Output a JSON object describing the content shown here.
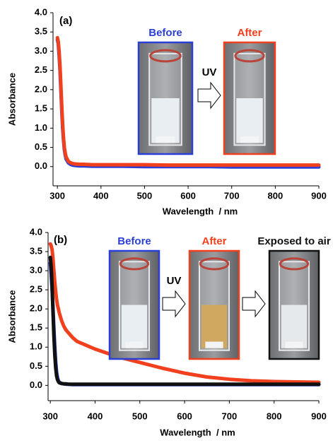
{
  "chart_data": [
    {
      "type": "line",
      "panel_label": "(a)",
      "x_label": "Wavelength  / nm",
      "y_label": "Absorbance",
      "annotations": [
        "UV"
      ],
      "x": [
        300,
        302,
        304,
        306,
        308,
        310,
        312,
        314,
        316,
        318,
        320,
        325,
        330,
        335,
        340,
        350,
        360,
        380,
        400,
        450,
        500,
        550,
        600,
        650,
        700,
        750,
        800,
        850,
        900
      ],
      "xlim": [
        290,
        900
      ],
      "xticks": [
        300,
        400,
        500,
        600,
        700,
        800,
        900
      ],
      "ylim": [
        -0.5,
        4.0
      ],
      "yticks": [
        {
          "value": 0,
          "label": "0.0"
        },
        0.5,
        {
          "value": 1,
          "label": "1.0"
        },
        1.5,
        {
          "value": 2,
          "label": "2.0"
        },
        2.5,
        {
          "value": 3,
          "label": "3.0"
        },
        3.5,
        {
          "value": 4,
          "label": "4.0"
        }
      ],
      "grid": false,
      "series": [
        {
          "name": "Before",
          "color": "#2b3fd6",
          "values": [
            3.3,
            3.2,
            2.9,
            2.5,
            2.0,
            1.5,
            1.0,
            0.7,
            0.45,
            0.3,
            0.2,
            0.1,
            0.06,
            0.04,
            0.03,
            0.02,
            0.02,
            0.01,
            0.01,
            0.01,
            0.0,
            0.0,
            0.0,
            0.0,
            -0.01,
            -0.01,
            -0.01,
            -0.01,
            -0.01
          ]
        },
        {
          "name": "After",
          "color": "#f0401e",
          "values": [
            3.35,
            3.25,
            3.0,
            2.6,
            2.1,
            1.6,
            1.1,
            0.75,
            0.5,
            0.35,
            0.25,
            0.14,
            0.1,
            0.08,
            0.07,
            0.06,
            0.06,
            0.05,
            0.05,
            0.05,
            0.05,
            0.04,
            0.04,
            0.04,
            0.04,
            0.04,
            0.04,
            0.04,
            0.04
          ]
        }
      ]
    },
    {
      "type": "line",
      "panel_label": "(b)",
      "x_label": "Wavelength  / nm",
      "y_label": "Absorbance",
      "annotations": [
        "UV"
      ],
      "x": [
        300,
        302,
        304,
        306,
        308,
        310,
        312,
        314,
        316,
        318,
        320,
        325,
        330,
        335,
        340,
        350,
        360,
        380,
        400,
        450,
        500,
        550,
        600,
        650,
        700,
        750,
        800,
        850,
        900
      ],
      "xlim": [
        295,
        900
      ],
      "xticks": [
        300,
        400,
        500,
        600,
        700,
        800,
        900
      ],
      "ylim": [
        -0.4,
        4.0
      ],
      "yticks": [
        {
          "value": 0,
          "label": "0.0"
        },
        0.5,
        {
          "value": 1,
          "label": "1.0"
        },
        1.5,
        {
          "value": 2,
          "label": "2.0"
        },
        2.5,
        {
          "value": 3,
          "label": "3.0"
        },
        3.5,
        {
          "value": 4,
          "label": "4.0"
        }
      ],
      "grid": false,
      "series": [
        {
          "name": "Before",
          "color": "#2b3fd6",
          "values": [
            3.2,
            2.9,
            2.5,
            2.0,
            1.5,
            1.0,
            0.6,
            0.35,
            0.2,
            0.12,
            0.08,
            0.05,
            0.04,
            0.03,
            0.03,
            0.02,
            0.02,
            0.02,
            0.02,
            0.02,
            0.02,
            0.02,
            0.02,
            0.02,
            0.02,
            0.02,
            0.02,
            0.02,
            0.02
          ]
        },
        {
          "name": "After",
          "color": "#f0401e",
          "values": [
            3.7,
            3.65,
            3.55,
            3.3,
            3.0,
            2.7,
            2.45,
            2.25,
            2.1,
            2.0,
            1.9,
            1.7,
            1.55,
            1.45,
            1.38,
            1.25,
            1.15,
            1.05,
            0.95,
            0.75,
            0.6,
            0.45,
            0.32,
            0.22,
            0.16,
            0.12,
            0.1,
            0.09,
            0.08
          ]
        },
        {
          "name": "Exposed to air",
          "color": "#111111",
          "values": [
            3.35,
            3.1,
            2.6,
            1.9,
            1.3,
            0.8,
            0.45,
            0.25,
            0.15,
            0.1,
            0.07,
            0.05,
            0.04,
            0.04,
            0.03,
            0.03,
            0.03,
            0.03,
            0.03,
            0.03,
            0.03,
            0.03,
            0.03,
            0.03,
            0.03,
            0.03,
            0.03,
            0.03,
            0.03
          ]
        }
      ]
    }
  ]
}
